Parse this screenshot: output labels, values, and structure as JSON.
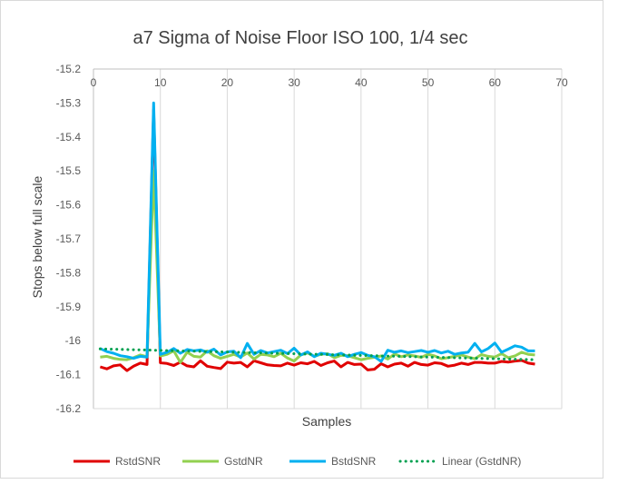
{
  "chart_data": {
    "type": "line",
    "title": "a7 Sigma of Noise Floor ISO 100, 1/4 sec",
    "xlabel": "Samples",
    "ylabel": "Stops below full scale",
    "xlim": [
      0,
      70
    ],
    "ylim": [
      -16.2,
      -15.2
    ],
    "x_ticks": [
      0,
      10,
      20,
      30,
      40,
      50,
      60,
      70
    ],
    "y_ticks": [
      -15.2,
      -15.3,
      -15.4,
      -15.5,
      -15.6,
      -15.7,
      -15.8,
      -15.9,
      -16,
      -16.1,
      -16.2
    ],
    "grid": "vertical",
    "legend_position": "bottom",
    "x": [
      1,
      2,
      3,
      4,
      5,
      6,
      7,
      8,
      9,
      10,
      11,
      12,
      13,
      14,
      15,
      16,
      17,
      18,
      19,
      20,
      21,
      22,
      23,
      24,
      25,
      26,
      27,
      28,
      29,
      30,
      31,
      32,
      33,
      34,
      35,
      36,
      37,
      38,
      39,
      40,
      41,
      42,
      43,
      44,
      45,
      46,
      47,
      48,
      49,
      50,
      51,
      52,
      53,
      54,
      55,
      56,
      57,
      58,
      59,
      60,
      61,
      62,
      63,
      64,
      65,
      66
    ],
    "series": [
      {
        "name": "RstdSNR",
        "color": "#e00000",
        "style": "solid",
        "values": [
          -16.077,
          -16.083,
          -16.074,
          -16.071,
          -16.088,
          -16.075,
          -16.066,
          -16.07,
          -15.32,
          -16.065,
          -16.067,
          -16.073,
          -16.063,
          -16.074,
          -16.077,
          -16.059,
          -16.075,
          -16.079,
          -16.082,
          -16.063,
          -16.066,
          -16.064,
          -16.077,
          -16.059,
          -16.065,
          -16.071,
          -16.073,
          -16.074,
          -16.066,
          -16.072,
          -16.065,
          -16.068,
          -16.061,
          -16.073,
          -16.065,
          -16.06,
          -16.077,
          -16.064,
          -16.07,
          -16.069,
          -16.086,
          -16.084,
          -16.068,
          -16.077,
          -16.069,
          -16.066,
          -16.075,
          -16.064,
          -16.07,
          -16.072,
          -16.065,
          -16.067,
          -16.075,
          -16.072,
          -16.066,
          -16.07,
          -16.064,
          -16.064,
          -16.066,
          -16.066,
          -16.061,
          -16.063,
          -16.06,
          -16.058,
          -16.066,
          -16.069
        ]
      },
      {
        "name": "GstdNR",
        "color": "#92d050",
        "style": "solid",
        "values": [
          -16.048,
          -16.046,
          -16.052,
          -16.055,
          -16.056,
          -16.05,
          -16.042,
          -16.047,
          -15.5,
          -16.045,
          -16.04,
          -16.03,
          -16.064,
          -16.034,
          -16.046,
          -16.048,
          -16.03,
          -16.044,
          -16.052,
          -16.046,
          -16.04,
          -16.048,
          -16.036,
          -16.054,
          -16.04,
          -16.042,
          -16.047,
          -16.037,
          -16.051,
          -16.06,
          -16.042,
          -16.036,
          -16.046,
          -16.04,
          -16.038,
          -16.05,
          -16.043,
          -16.044,
          -16.05,
          -16.056,
          -16.052,
          -16.049,
          -16.045,
          -16.054,
          -16.039,
          -16.047,
          -16.042,
          -16.045,
          -16.049,
          -16.04,
          -16.045,
          -16.053,
          -16.05,
          -16.046,
          -16.042,
          -16.048,
          -16.053,
          -16.041,
          -16.046,
          -16.048,
          -16.038,
          -16.05,
          -16.045,
          -16.034,
          -16.04,
          -16.042
        ]
      },
      {
        "name": "BstdSNR",
        "color": "#00b0f0",
        "style": "solid",
        "values": [
          -16.023,
          -16.032,
          -16.037,
          -16.044,
          -16.047,
          -16.052,
          -16.046,
          -16.048,
          -15.3,
          -16.04,
          -16.034,
          -16.023,
          -16.037,
          -16.026,
          -16.03,
          -16.027,
          -16.034,
          -16.025,
          -16.042,
          -16.033,
          -16.031,
          -16.05,
          -16.008,
          -16.04,
          -16.029,
          -16.036,
          -16.032,
          -16.028,
          -16.038,
          -16.022,
          -16.042,
          -16.033,
          -16.047,
          -16.037,
          -16.04,
          -16.043,
          -16.037,
          -16.047,
          -16.04,
          -16.035,
          -16.043,
          -16.047,
          -16.061,
          -16.028,
          -16.034,
          -16.03,
          -16.035,
          -16.032,
          -16.029,
          -16.034,
          -16.029,
          -16.036,
          -16.031,
          -16.04,
          -16.036,
          -16.034,
          -16.008,
          -16.033,
          -16.023,
          -16.007,
          -16.034,
          -16.025,
          -16.015,
          -16.019,
          -16.03,
          -16.03
        ]
      },
      {
        "name": "Linear (GstdNR)",
        "color": "#00a050",
        "style": "dotted",
        "trend_start": [
          1,
          -16.024
        ],
        "trend_end": [
          66,
          -16.056
        ]
      }
    ]
  }
}
